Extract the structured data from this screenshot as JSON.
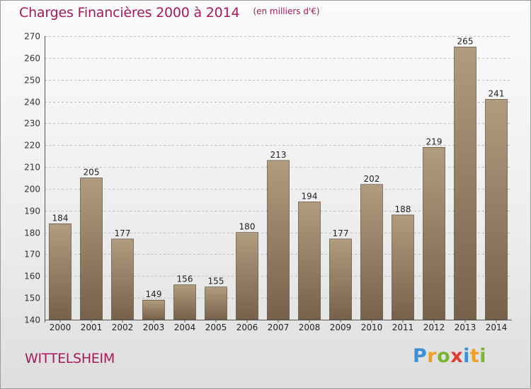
{
  "chart_data": {
    "type": "bar",
    "title": "Charges Financières 2000 à 2014",
    "subtitle": "(en milliers d'€)",
    "categories": [
      "2000",
      "2001",
      "2002",
      "2003",
      "2004",
      "2005",
      "2006",
      "2007",
      "2008",
      "2009",
      "2010",
      "2011",
      "2012",
      "2013",
      "2014"
    ],
    "values": [
      184,
      205,
      177,
      149,
      156,
      155,
      180,
      213,
      194,
      177,
      202,
      188,
      219,
      265,
      241
    ],
    "ylim": [
      140,
      270
    ],
    "yticks": [
      140,
      150,
      160,
      170,
      180,
      190,
      200,
      210,
      220,
      230,
      240,
      250,
      260,
      270
    ],
    "grid": "horizontal dashed",
    "data_labels": true,
    "colors": {
      "bar_top": "#b09c7e",
      "bar_bottom": "#76624a",
      "accent": "#a6195a"
    }
  },
  "footer": {
    "commune": "WITTELSHEIM",
    "logo_letters": [
      {
        "char": "P",
        "color": "#3a8fd6"
      },
      {
        "char": "r",
        "color": "#f0a020"
      },
      {
        "char": "o",
        "color": "#79b530"
      },
      {
        "char": "x",
        "color": "#e23a30"
      },
      {
        "char": "i",
        "color": "#3a8fd6"
      },
      {
        "char": "t",
        "color": "#f0a020"
      },
      {
        "char": "i",
        "color": "#79b530"
      }
    ]
  }
}
